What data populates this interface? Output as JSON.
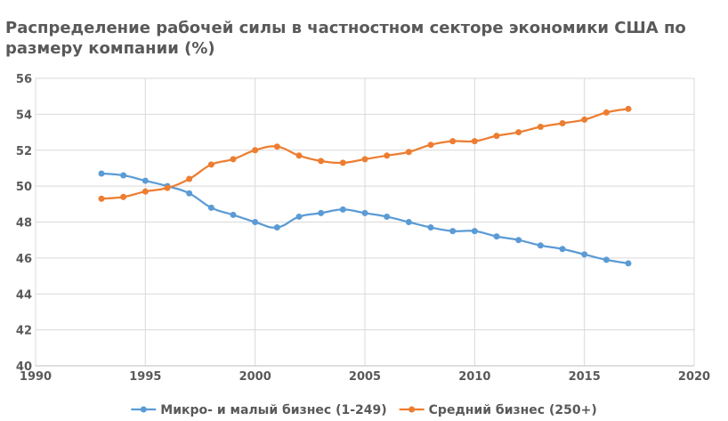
{
  "chart_data": {
    "type": "line",
    "title": "Распределение рабочей силы в частностном секторе экономики США по размеру компании (%)",
    "xlabel": "",
    "ylabel": "",
    "xlim": [
      1990,
      2020
    ],
    "ylim": [
      40,
      56
    ],
    "x_ticks": [
      1990,
      1995,
      2000,
      2005,
      2010,
      2015,
      2020
    ],
    "y_ticks": [
      40,
      42,
      44,
      46,
      48,
      50,
      52,
      54,
      56
    ],
    "grid": true,
    "legend_position": "bottom",
    "x": [
      1993,
      1994,
      1995,
      1996,
      1997,
      1998,
      1999,
      2000,
      2001,
      2002,
      2003,
      2004,
      2005,
      2006,
      2007,
      2008,
      2009,
      2010,
      2011,
      2012,
      2013,
      2014,
      2015,
      2016,
      2017
    ],
    "series": [
      {
        "name": "Микро- и малый бизнес (1-249)",
        "color": "#5B9BD5",
        "values": [
          50.7,
          50.6,
          50.3,
          50.0,
          49.6,
          48.8,
          48.4,
          48.0,
          47.7,
          48.3,
          48.5,
          48.7,
          48.5,
          48.3,
          48.0,
          47.7,
          47.5,
          47.5,
          47.2,
          47.0,
          46.7,
          46.5,
          46.2,
          45.9,
          45.7
        ]
      },
      {
        "name": "Средний бизнес (250+)",
        "color": "#ED7D31",
        "values": [
          49.3,
          49.4,
          49.7,
          49.9,
          50.4,
          51.2,
          51.5,
          52.0,
          52.2,
          51.7,
          51.4,
          51.3,
          51.5,
          51.7,
          51.9,
          52.3,
          52.5,
          52.5,
          52.8,
          53.0,
          53.3,
          53.5,
          53.7,
          54.1,
          54.3
        ]
      }
    ]
  }
}
